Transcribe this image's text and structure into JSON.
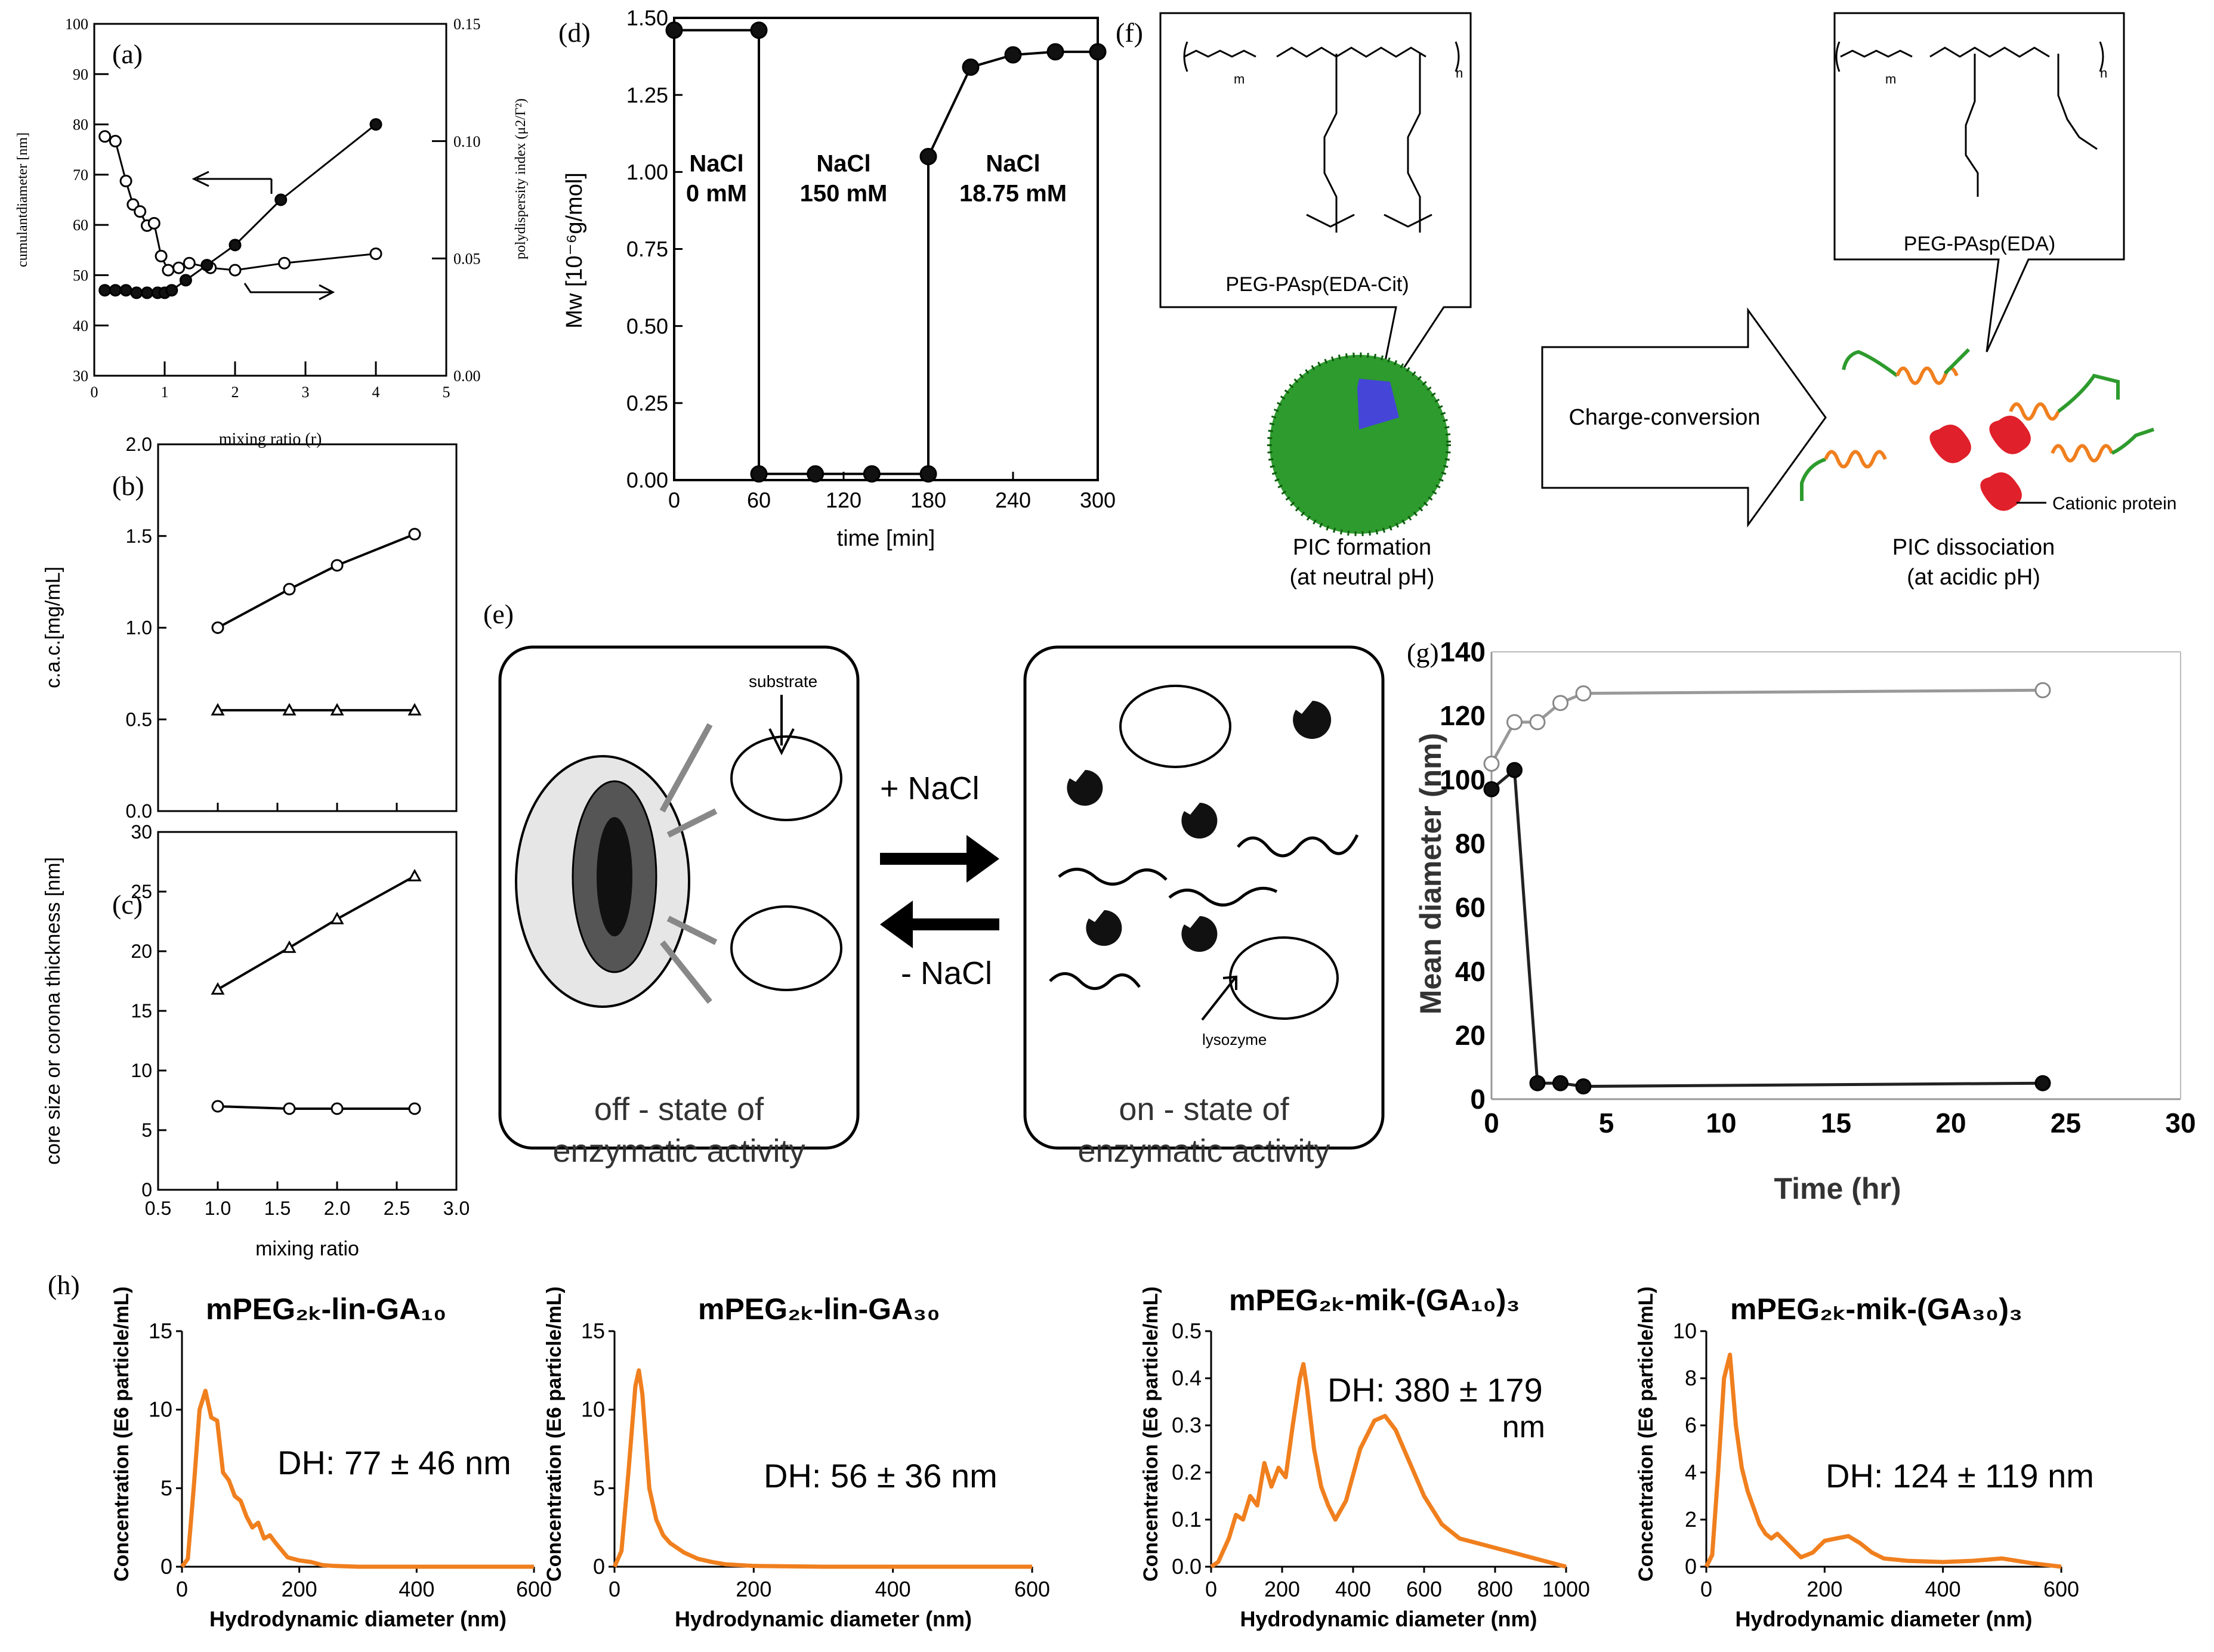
{
  "panel_labels": {
    "a": "(a)",
    "b": "(b)",
    "c": "(c)",
    "d": "(d)",
    "e": "(e)",
    "f": "(f)",
    "g": "(g)",
    "h": "(h)"
  },
  "colors": {
    "orange": "#F07F1E",
    "green": "#2D9B2D",
    "dark": "#1a1a1a",
    "gray": "#888888",
    "white_marker": "#ffffff",
    "protein": "#e0202a"
  },
  "chart_data": [
    {
      "id": "a",
      "type": "line",
      "xlabel": "mixing ratio (r)",
      "ylabel": "cumulantdiameter [nm]",
      "y2label": "polydispersity index (μ2/Γ²)",
      "xlim": [
        0,
        5
      ],
      "ylim": [
        30,
        100
      ],
      "y2lim": [
        0,
        0.15
      ],
      "xticks": [
        0,
        1,
        2,
        3,
        4,
        5
      ],
      "yticks": [
        30,
        40,
        50,
        60,
        70,
        80,
        90,
        100
      ],
      "y2ticks": [
        "0.00",
        "0.05",
        "0.10",
        "0.15"
      ],
      "series": [
        {
          "name": "cumulant diameter",
          "axis": "left",
          "marker": "filled",
          "x": [
            0.15,
            0.3,
            0.45,
            0.6,
            0.75,
            0.9,
            1.0,
            1.1,
            1.3,
            1.6,
            2.0,
            2.65,
            4.0
          ],
          "y": [
            47,
            47,
            47,
            46.5,
            46.5,
            46.5,
            46.5,
            47,
            49,
            52,
            56,
            65,
            80
          ]
        },
        {
          "name": "polydispersity index",
          "axis": "right",
          "marker": "open",
          "x": [
            0.15,
            0.3,
            0.45,
            0.55,
            0.65,
            0.75,
            0.85,
            0.95,
            1.05,
            1.2,
            1.35,
            1.65,
            2.0,
            2.7,
            4.0
          ],
          "y": [
            0.102,
            0.1,
            0.083,
            0.073,
            0.07,
            0.064,
            0.065,
            0.051,
            0.045,
            0.046,
            0.048,
            0.046,
            0.045,
            0.048,
            0.052
          ]
        }
      ]
    },
    {
      "id": "b",
      "type": "line",
      "ylabel": "c.a.c.[mg/mL]",
      "xlim": [
        0.5,
        3.0
      ],
      "ylim": [
        0,
        2.0
      ],
      "yticks": [
        "0.0",
        "0.5",
        "1.0",
        "1.5",
        "2.0"
      ],
      "series": [
        {
          "name": "circles",
          "marker": "open-circle",
          "x": [
            1.0,
            1.6,
            2.0,
            2.65
          ],
          "y": [
            1.0,
            1.21,
            1.34,
            1.51
          ]
        },
        {
          "name": "triangles",
          "marker": "open-triangle",
          "x": [
            1.0,
            1.6,
            2.0,
            2.65
          ],
          "y": [
            0.55,
            0.55,
            0.55,
            0.55
          ]
        }
      ]
    },
    {
      "id": "c",
      "type": "line",
      "xlabel": "mixing ratio",
      "ylabel": "core size or corona thickness [nm]",
      "xlim": [
        0.5,
        3.0
      ],
      "ylim": [
        0,
        30
      ],
      "xticks": [
        "0.5",
        "1.0",
        "1.5",
        "2.0",
        "2.5",
        "3.0"
      ],
      "yticks": [
        "0",
        "5",
        "10",
        "15",
        "20",
        "25",
        "30"
      ],
      "series": [
        {
          "name": "triangles",
          "marker": "open-triangle",
          "x": [
            1.0,
            1.6,
            2.0,
            2.65
          ],
          "y": [
            16.8,
            20.3,
            22.7,
            26.3
          ]
        },
        {
          "name": "circles",
          "marker": "open-circle",
          "x": [
            1.0,
            1.6,
            2.0,
            2.65
          ],
          "y": [
            7.0,
            6.8,
            6.8,
            6.8
          ]
        }
      ]
    },
    {
      "id": "d",
      "type": "line",
      "xlabel": "time [min]",
      "ylabel": "Mw [10⁻⁶g/mol]",
      "xlim": [
        0,
        300
      ],
      "ylim": [
        0,
        1.5
      ],
      "xticks": [
        "0",
        "60",
        "120",
        "180",
        "240",
        "300"
      ],
      "yticks": [
        "0.00",
        "0.25",
        "0.50",
        "0.75",
        "1.00",
        "1.25",
        "1.50"
      ],
      "annotations": [
        {
          "line1": "NaCl",
          "line2": "0 mM",
          "x": 30,
          "y": 0.75
        },
        {
          "line1": "NaCl",
          "line2": "150 mM",
          "x": 120,
          "y": 0.75
        },
        {
          "line1": "NaCl",
          "line2": "18.75 mM",
          "x": 240,
          "y": 0.75
        }
      ],
      "series": [
        {
          "name": "Mw",
          "marker": "filled",
          "x": [
            0,
            60,
            60,
            100,
            140,
            180,
            180,
            210,
            240,
            270,
            300
          ],
          "y": [
            1.46,
            1.46,
            0.02,
            0.02,
            0.02,
            0.02,
            1.05,
            1.34,
            1.38,
            1.39,
            1.39
          ],
          "markers_at": [
            0,
            1,
            2,
            3,
            4,
            5,
            6,
            7,
            8,
            9,
            10
          ]
        }
      ]
    },
    {
      "id": "g",
      "type": "line",
      "xlabel": "Time (hr)",
      "ylabel": "Mean diameter (nm)",
      "xlim": [
        0,
        30
      ],
      "ylim": [
        0,
        140
      ],
      "xticks": [
        "0",
        "5",
        "10",
        "15",
        "20",
        "25",
        "30"
      ],
      "yticks": [
        "0",
        "20",
        "40",
        "60",
        "80",
        "100",
        "120",
        "140"
      ],
      "series": [
        {
          "name": "open",
          "marker": "open-gray",
          "x": [
            0,
            1,
            2,
            3,
            4,
            24
          ],
          "y": [
            105,
            118,
            118,
            124,
            127,
            128
          ]
        },
        {
          "name": "filled",
          "marker": "filled",
          "x": [
            0,
            1,
            2,
            3,
            4,
            24
          ],
          "y": [
            97,
            103,
            5,
            5,
            4,
            5
          ]
        }
      ]
    },
    {
      "id": "h1",
      "type": "line",
      "title": "mPEG₂ₖ-lin-GA₁₀",
      "annotation": "DH: 77 ± 46 nm",
      "xlabel": "Hydrodynamic diameter (nm)",
      "ylabel": "Concentration (E6 particle/mL)",
      "xlim": [
        0,
        600
      ],
      "ylim": [
        0,
        15
      ],
      "xticks": [
        "0",
        "200",
        "400",
        "600"
      ],
      "yticks": [
        "0",
        "5",
        "10",
        "15"
      ],
      "series": [
        {
          "name": "distribution",
          "x": [
            0,
            10,
            20,
            30,
            40,
            50,
            60,
            70,
            80,
            90,
            100,
            110,
            120,
            130,
            140,
            150,
            160,
            180,
            200,
            220,
            240,
            260,
            300,
            400,
            600
          ],
          "y": [
            0,
            0.5,
            5,
            10,
            11.2,
            9.5,
            9.3,
            6,
            5.5,
            4.5,
            4.2,
            3.2,
            2.5,
            2.8,
            1.8,
            2,
            1.5,
            0.6,
            0.4,
            0.3,
            0.1,
            0.05,
            0,
            0,
            0
          ]
        }
      ]
    },
    {
      "id": "h2",
      "type": "line",
      "title": "mPEG₂ₖ-lin-GA₃₀",
      "annotation": "DH: 56 ± 36 nm",
      "xlabel": "Hydrodynamic diameter (nm)",
      "ylabel": "Concentration (E6 particle/mL)",
      "xlim": [
        0,
        600
      ],
      "ylim": [
        0,
        15
      ],
      "xticks": [
        "0",
        "200",
        "400",
        "600"
      ],
      "yticks": [
        "0",
        "5",
        "10",
        "15"
      ],
      "series": [
        {
          "name": "distribution",
          "x": [
            0,
            10,
            20,
            30,
            35,
            40,
            50,
            60,
            70,
            80,
            90,
            100,
            120,
            140,
            160,
            200,
            300,
            600
          ],
          "y": [
            0,
            1,
            6,
            11.5,
            12.5,
            11,
            5,
            3,
            2,
            1.5,
            1.2,
            0.9,
            0.5,
            0.3,
            0.15,
            0.05,
            0,
            0
          ]
        }
      ]
    },
    {
      "id": "h3",
      "type": "line",
      "title": "mPEG₂ₖ-mik-(GA₁₀)₃",
      "annotation": "DH: 380 ± 179",
      "annotation2": "nm",
      "xlabel": "Hydrodynamic diameter (nm)",
      "ylabel": "Concentration (E6 particle/mL)",
      "xlim": [
        0,
        1000
      ],
      "ylim": [
        0,
        0.5
      ],
      "xticks": [
        "0",
        "200",
        "400",
        "600",
        "800",
        "1000"
      ],
      "yticks": [
        "0.0",
        "0.1",
        "0.2",
        "0.3",
        "0.4",
        "0.5"
      ],
      "series": [
        {
          "name": "distribution",
          "x": [
            0,
            20,
            50,
            70,
            90,
            110,
            130,
            150,
            170,
            190,
            210,
            230,
            250,
            260,
            270,
            290,
            310,
            330,
            350,
            380,
            420,
            460,
            490,
            520,
            560,
            600,
            650,
            700,
            750,
            800,
            850,
            900,
            950,
            1000
          ],
          "y": [
            0,
            0.01,
            0.06,
            0.11,
            0.1,
            0.15,
            0.13,
            0.22,
            0.17,
            0.21,
            0.19,
            0.3,
            0.4,
            0.43,
            0.38,
            0.25,
            0.17,
            0.13,
            0.1,
            0.14,
            0.25,
            0.31,
            0.32,
            0.29,
            0.22,
            0.15,
            0.09,
            0.06,
            0.05,
            0.04,
            0.03,
            0.02,
            0.01,
            0
          ]
        }
      ]
    },
    {
      "id": "h4",
      "type": "line",
      "title": "mPEG₂ₖ-mik-(GA₃₀)₃",
      "annotation": "DH: 124 ± 119 nm",
      "xlabel": "Hydrodynamic diameter (nm)",
      "ylabel": "Concentration (E6 particle/mL)",
      "xlim": [
        0,
        600
      ],
      "ylim": [
        0,
        10
      ],
      "xticks": [
        "0",
        "200",
        "400",
        "600"
      ],
      "yticks": [
        "0",
        "2",
        "4",
        "6",
        "8",
        "10"
      ],
      "series": [
        {
          "name": "distribution",
          "x": [
            0,
            10,
            20,
            30,
            40,
            50,
            60,
            70,
            80,
            90,
            100,
            110,
            120,
            140,
            160,
            180,
            200,
            220,
            240,
            260,
            280,
            300,
            340,
            400,
            450,
            500,
            550,
            600
          ],
          "y": [
            0,
            0.5,
            4,
            8,
            9,
            6,
            4.2,
            3.2,
            2.5,
            1.8,
            1.4,
            1.2,
            1.4,
            0.9,
            0.4,
            0.6,
            1.1,
            1.2,
            1.3,
            1.0,
            0.6,
            0.35,
            0.25,
            0.2,
            0.25,
            0.35,
            0.15,
            0
          ]
        }
      ]
    }
  ],
  "panel_e": {
    "substrate": "substrate",
    "plus_nacl": "+ NaCl",
    "minus_nacl": "- NaCl",
    "lysozyme": "lysozyme",
    "off_line1": "off - state of",
    "off_line2": "enzymatic activity",
    "on_line1": "on - state of",
    "on_line2": "enzymatic activity"
  },
  "panel_f": {
    "polymer1": "PEG-PAsp(EDA-Cit)",
    "polymer2": "PEG-PAsp(EDA)",
    "arrow": "Charge-conversion",
    "protein": "Cationic protein",
    "left_line1": "PIC formation",
    "left_line2": "(at neutral pH)",
    "right_line1": "PIC dissociation",
    "right_line2": "(at acidic pH)",
    "sub_m": "m",
    "sub_n": "n"
  }
}
